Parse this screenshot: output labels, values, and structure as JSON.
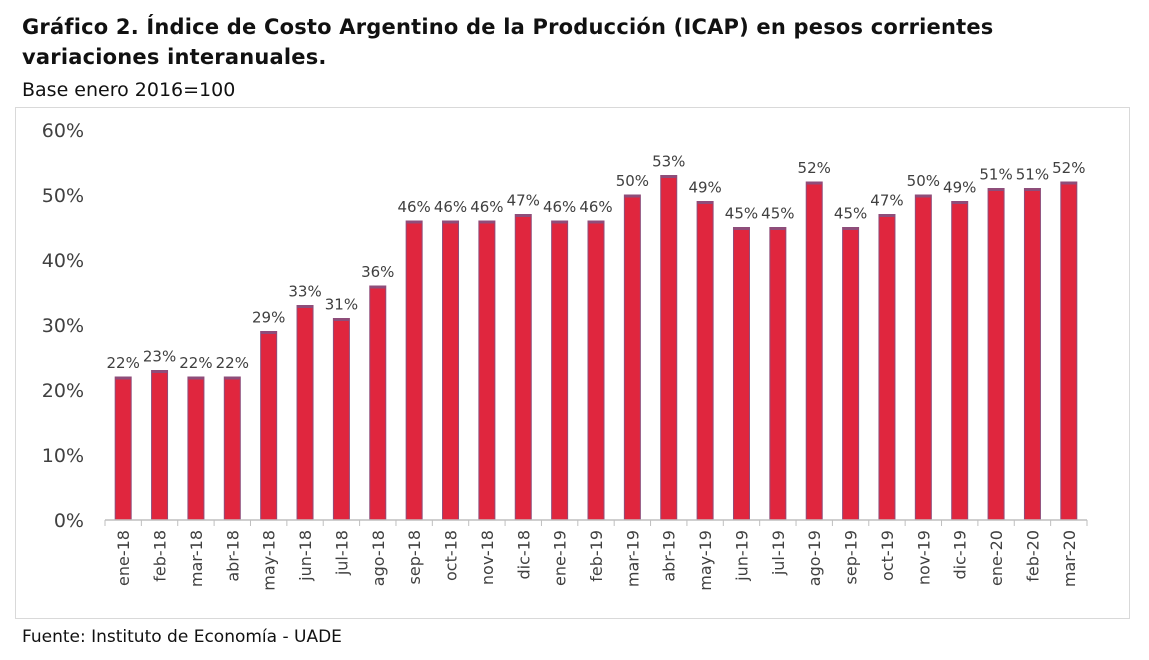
{
  "title_line1": "Gráfico 2. Índice de Costo Argentino de la Producción (ICAP) en pesos corrientes",
  "title_line2": "variaciones interanuales.",
  "subtitle": "Base enero 2016=100",
  "source": "Fuente: Instituto de Economía - UADE",
  "colors": {
    "bar": "#e0263e",
    "bar_edge": "#8e4d7a",
    "axis": "#bfbfbf",
    "text": "#404040"
  },
  "chart_data": {
    "type": "bar",
    "categories": [
      "ene-18",
      "feb-18",
      "mar-18",
      "abr-18",
      "may-18",
      "jun-18",
      "jul-18",
      "ago-18",
      "sep-18",
      "oct-18",
      "nov-18",
      "dic-18",
      "ene-19",
      "feb-19",
      "mar-19",
      "abr-19",
      "may-19",
      "jun-19",
      "jul-19",
      "ago-19",
      "sep-19",
      "oct-19",
      "nov-19",
      "dic-19",
      "ene-20",
      "feb-20",
      "mar-20"
    ],
    "values": [
      22,
      23,
      22,
      22,
      29,
      33,
      31,
      36,
      46,
      46,
      46,
      47,
      46,
      46,
      50,
      53,
      49,
      45,
      45,
      52,
      45,
      47,
      50,
      49,
      51,
      51,
      52
    ],
    "data_labels": [
      "22%",
      "23%",
      "22%",
      "22%",
      "29%",
      "33%",
      "31%",
      "36%",
      "46%",
      "46%",
      "46%",
      "47%",
      "46%",
      "46%",
      "50%",
      "53%",
      "49%",
      "45%",
      "45%",
      "52%",
      "45%",
      "47%",
      "50%",
      "49%",
      "51%",
      "51%",
      "52%"
    ],
    "yticks": [
      "0%",
      "10%",
      "20%",
      "30%",
      "40%",
      "50%",
      "60%"
    ],
    "ylim": [
      0,
      60
    ],
    "grid": false,
    "legend": "none"
  }
}
